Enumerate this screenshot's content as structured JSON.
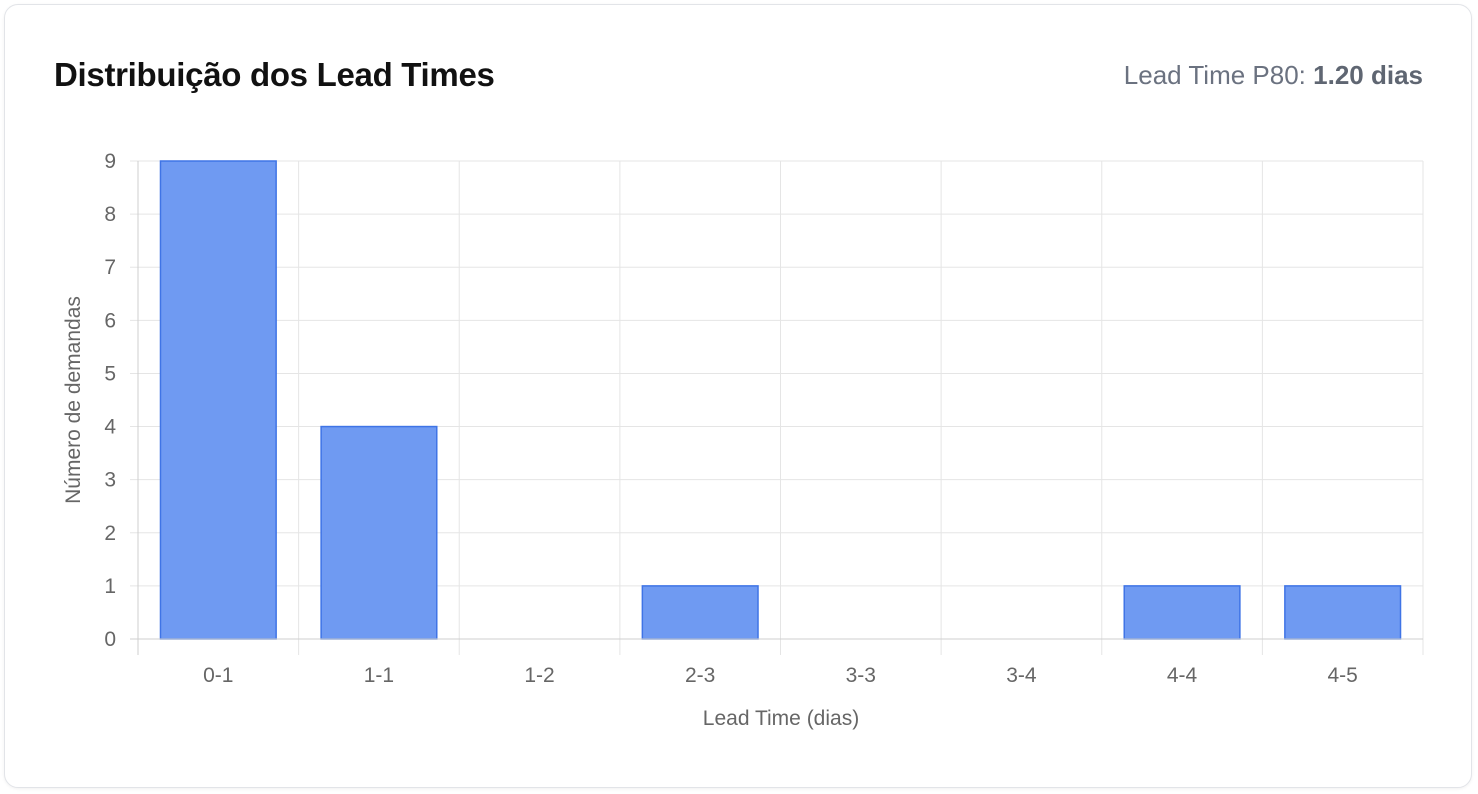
{
  "card": {
    "title": "Distribuição dos Lead Times",
    "metric_label": "Lead Time P80:",
    "metric_value": "1.20 dias"
  },
  "colors": {
    "bar_fill": "#6f9af2",
    "bar_stroke": "#3f74e6",
    "grid": "#e5e5e5",
    "axis": "#cfcfcf",
    "text": "#666666"
  },
  "chart_data": {
    "type": "bar",
    "xlabel": "Lead Time (dias)",
    "ylabel": "Número de demandas",
    "categories": [
      "0-1",
      "1-1",
      "1-2",
      "2-3",
      "3-3",
      "3-4",
      "4-4",
      "4-5"
    ],
    "values": [
      9,
      4,
      0,
      1,
      0,
      0,
      1,
      1
    ],
    "ylim": [
      0,
      9
    ],
    "yticks": [
      0,
      1,
      2,
      3,
      4,
      5,
      6,
      7,
      8,
      9
    ],
    "grid": true,
    "legend": "none"
  }
}
